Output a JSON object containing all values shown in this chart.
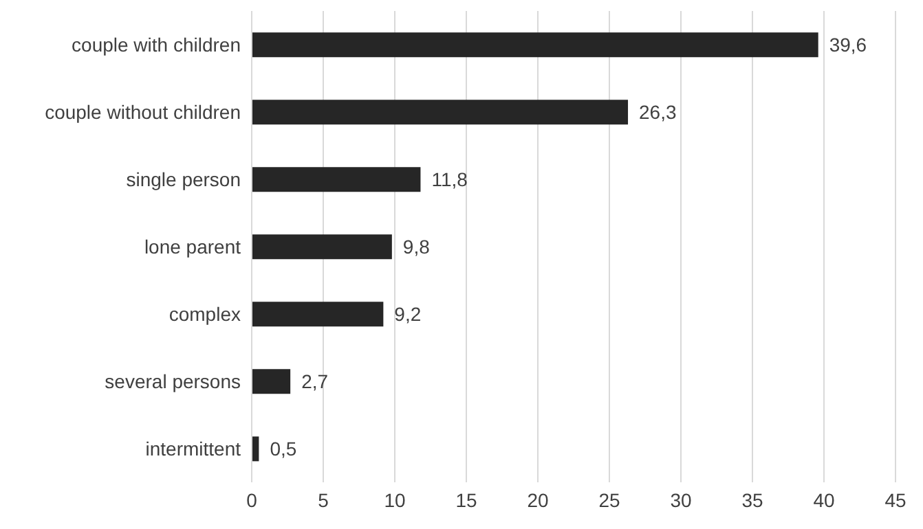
{
  "chart_data": {
    "type": "bar",
    "orientation": "horizontal",
    "categories": [
      "couple with children",
      "couple without children",
      "single person",
      "lone parent",
      "complex",
      "several persons",
      "intermittent"
    ],
    "values": [
      39.6,
      26.3,
      11.8,
      9.8,
      9.2,
      2.7,
      0.5
    ],
    "value_labels": [
      "39,6",
      "26,3",
      "11,8",
      "9,8",
      "9,2",
      "2,7",
      "0,5"
    ],
    "color": "#262626",
    "xlim": [
      0,
      45
    ],
    "xticks": [
      0,
      5,
      10,
      15,
      20,
      25,
      30,
      35,
      40,
      45
    ],
    "grid": "x"
  }
}
